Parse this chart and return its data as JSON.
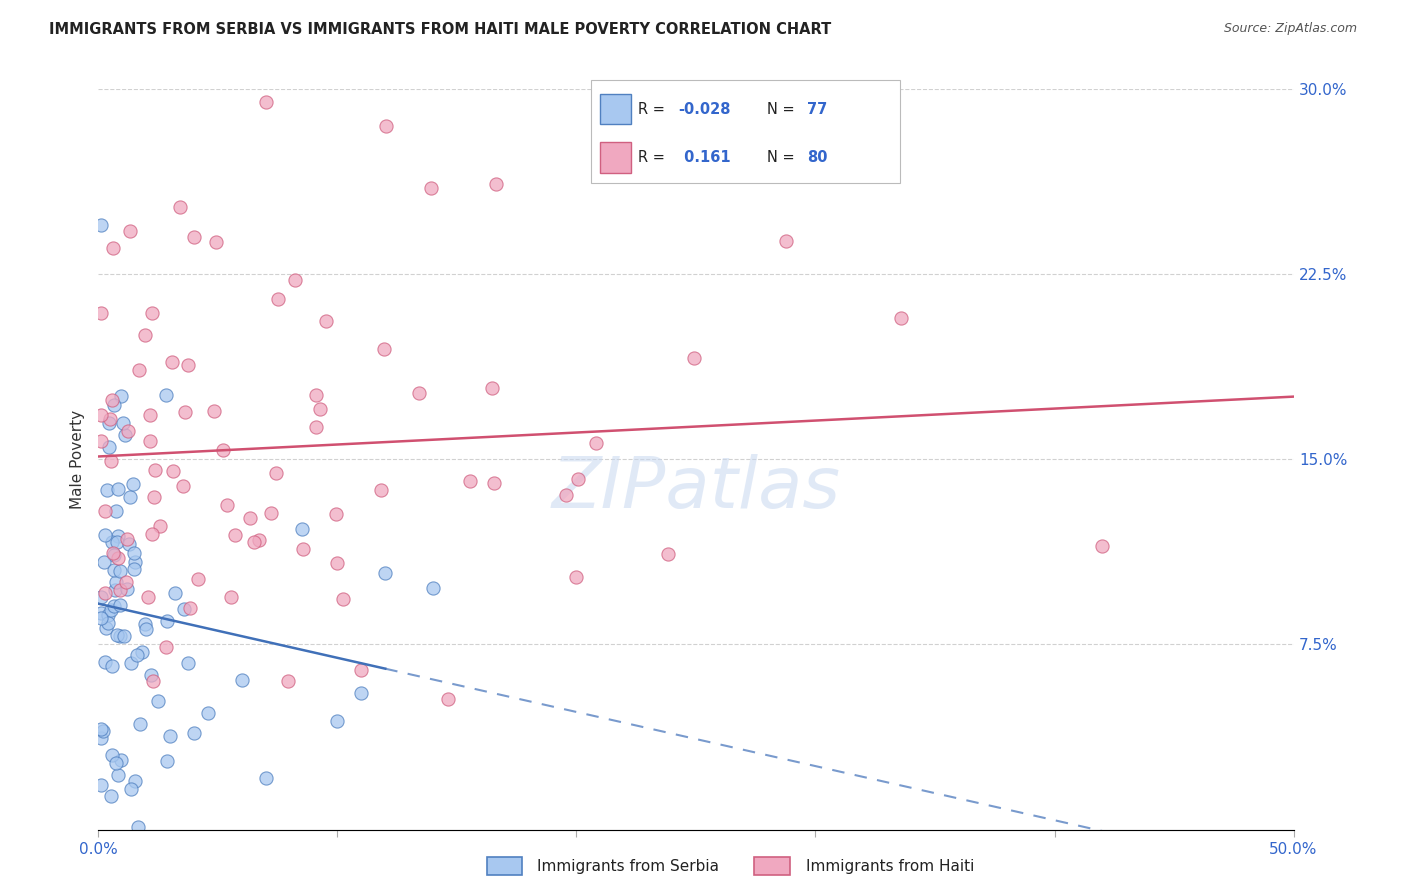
{
  "title": "IMMIGRANTS FROM SERBIA VS IMMIGRANTS FROM HAITI MALE POVERTY CORRELATION CHART",
  "source": "Source: ZipAtlas.com",
  "ylabel": "Male Poverty",
  "xlim": [
    0.0,
    0.5
  ],
  "ylim": [
    0.0,
    0.3
  ],
  "xtick_values": [
    0.0,
    0.1,
    0.2,
    0.3,
    0.4,
    0.5
  ],
  "ytick_values": [
    0.075,
    0.15,
    0.225,
    0.3
  ],
  "ytick_labels": [
    "7.5%",
    "15.0%",
    "22.5%",
    "30.0%"
  ],
  "serbia_color": "#A8C8F0",
  "haiti_color": "#F0A8C0",
  "serbia_edge": "#5080C0",
  "haiti_edge": "#D06080",
  "serbia_line_color": "#4070B8",
  "haiti_line_color": "#D05070",
  "serbia_R": -0.028,
  "serbia_N": 77,
  "haiti_R": 0.161,
  "haiti_N": 80,
  "bottom_legend_1": "Immigrants from Serbia",
  "bottom_legend_2": "Immigrants from Haiti",
  "watermark": "ZIPatlas",
  "watermark_color": "#C8D8F0"
}
